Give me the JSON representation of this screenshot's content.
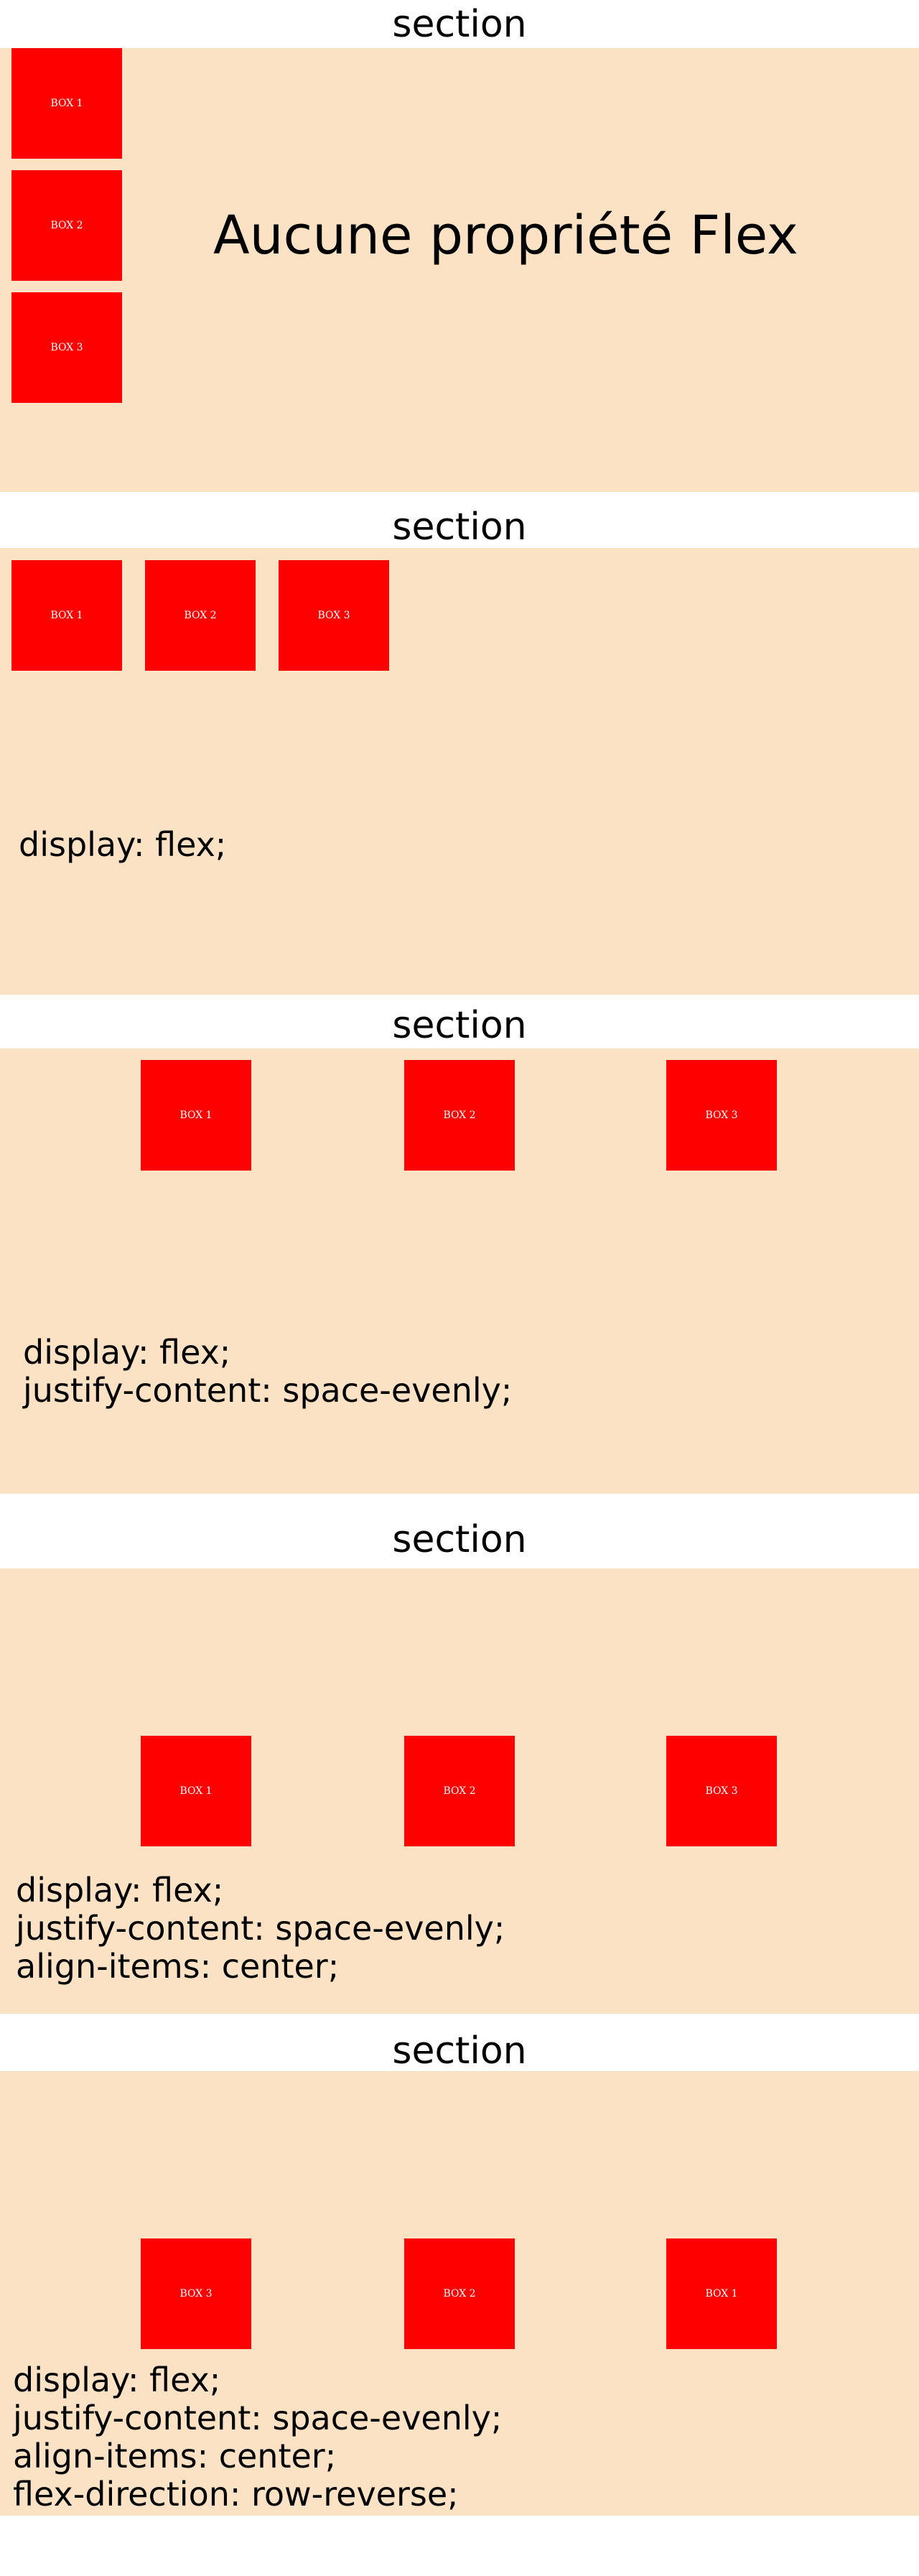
{
  "sections": [
    {
      "title": "section",
      "boxes": [
        "BOX 1",
        "BOX 2",
        "BOX 3"
      ],
      "label": "Aucune propriété Flex"
    },
    {
      "title": "section",
      "boxes": [
        "BOX 1",
        "BOX 2",
        "BOX 3"
      ],
      "code": [
        "display: flex;"
      ]
    },
    {
      "title": "section",
      "boxes": [
        "BOX 1",
        "BOX 2",
        "BOX 3"
      ],
      "code": [
        "display: flex;",
        "justify-content: space-evenly;"
      ]
    },
    {
      "title": "section",
      "boxes": [
        "BOX 1",
        "BOX 2",
        "BOX 3"
      ],
      "code": [
        "display: flex;",
        "justify-content: space-evenly;",
        "align-items: center;"
      ]
    },
    {
      "title": "section",
      "boxes": [
        "BOX 3",
        "BOX 2",
        "BOX 1"
      ],
      "code": [
        "display: flex;",
        "justify-content: space-evenly;",
        "align-items: center;",
        "flex-direction: row-reverse;"
      ]
    }
  ],
  "colors": {
    "panel_background": "#fce2c4",
    "box_background": "#ff0000",
    "box_text": "#ffffff"
  }
}
